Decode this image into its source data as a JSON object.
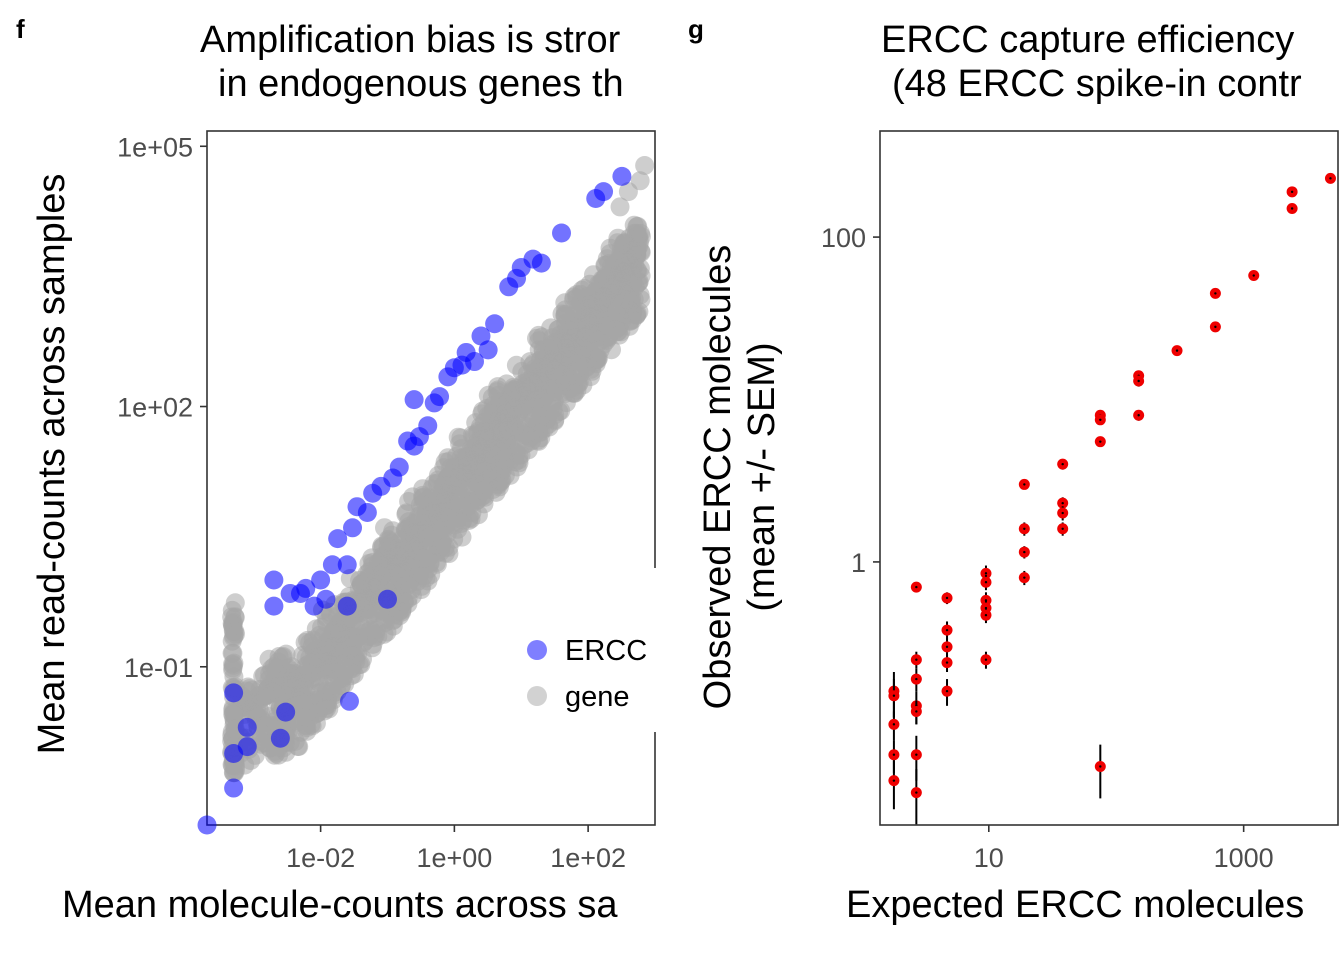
{
  "panels": {
    "f": {
      "letter": "f",
      "title_line1": "Amplification bias is stror",
      "title_line2": "in endogenous genes th",
      "xlabel": "Mean molecule-counts across sa",
      "ylabel": "Mean read-counts across samples",
      "legend": [
        {
          "label": "ERCC",
          "color": "#0000ff"
        },
        {
          "label": "gene",
          "color": "#a6a6a6"
        }
      ]
    },
    "g": {
      "letter": "g",
      "title_line1": "ERCC capture efficiency",
      "title_line2": "(48 ERCC spike-in contr",
      "xlabel": "Expected ERCC molecules",
      "ylabel_line1": "Observed ERCC molecules",
      "ylabel_line2": "(mean +/- SEM)"
    }
  },
  "chart_data": [
    {
      "type": "scatter",
      "panel": "f",
      "title": "Amplification bias is stror in endogenous genes th",
      "xlabel": "Mean molecule-counts across sa",
      "ylabel": "Mean read-counts across samples",
      "x_scale": "log10",
      "y_scale": "log10",
      "xlim": [
        0.0002,
        1000
      ],
      "ylim": [
        0.0015,
        150000
      ],
      "x_ticks": [
        "1e-02",
        "1e+00",
        "1e+02"
      ],
      "y_ticks": [
        "1e-01",
        "1e+02",
        "1e+05"
      ],
      "legend_position": "bottom-right",
      "grid": false,
      "series": [
        {
          "name": "ERCC",
          "color": "#0000ff",
          "points": [
            [
              0.0002,
              0.0015
            ],
            [
              0.0005,
              0.004
            ],
            [
              0.0005,
              0.01
            ],
            [
              0.0005,
              0.05
            ],
            [
              0.0008,
              0.012
            ],
            [
              0.0008,
              0.02
            ],
            [
              0.002,
              0.5
            ],
            [
              0.002,
              1.0
            ],
            [
              0.0025,
              0.015
            ],
            [
              0.003,
              0.03
            ],
            [
              0.0035,
              0.7
            ],
            [
              0.005,
              0.7
            ],
            [
              0.006,
              0.8
            ],
            [
              0.008,
              0.5
            ],
            [
              0.01,
              1.0
            ],
            [
              0.012,
              0.6
            ],
            [
              0.015,
              1.5
            ],
            [
              0.018,
              3.0
            ],
            [
              0.025,
              0.5
            ],
            [
              0.025,
              1.5
            ],
            [
              0.027,
              0.04
            ],
            [
              0.03,
              4.0
            ],
            [
              0.035,
              7.0
            ],
            [
              0.05,
              6.0
            ],
            [
              0.06,
              10.0
            ],
            [
              0.08,
              12.0
            ],
            [
              0.1,
              0.6
            ],
            [
              0.12,
              15.0
            ],
            [
              0.15,
              20.0
            ],
            [
              0.2,
              40.0
            ],
            [
              0.25,
              35.0
            ],
            [
              0.25,
              120.0
            ],
            [
              0.3,
              45.0
            ],
            [
              0.4,
              60.0
            ],
            [
              0.5,
              110.0
            ],
            [
              0.6,
              130.0
            ],
            [
              0.8,
              220.0
            ],
            [
              1.0,
              280.0
            ],
            [
              1.3,
              300.0
            ],
            [
              1.5,
              420.0
            ],
            [
              2.0,
              330.0
            ],
            [
              2.5,
              650.0
            ],
            [
              3.2,
              450.0
            ],
            [
              4.0,
              900.0
            ],
            [
              6.5,
              2400.0
            ],
            [
              8.5,
              3000.0
            ],
            [
              10.0,
              4000.0
            ],
            [
              15.0,
              5000.0
            ],
            [
              20.0,
              4500.0
            ],
            [
              40.0,
              10000.0
            ],
            [
              130.0,
              25000.0
            ],
            [
              170.0,
              30000.0
            ],
            [
              320.0,
              45000.0
            ]
          ]
        },
        {
          "name": "gene",
          "color": "#a6a6a6",
          "trend": [
            [
              0.0005,
              0.03
            ],
            [
              0.005,
              0.06
            ],
            [
              0.05,
              0.6
            ],
            [
              0.5,
              6
            ],
            [
              5,
              60
            ],
            [
              50,
              500
            ],
            [
              500,
              5000
            ]
          ],
          "spread_upper_factor": 4,
          "spread_lower_factor": 5,
          "upper_outliers": [
            [
              700,
              60000
            ],
            [
              600,
              40000
            ],
            [
              400,
              30000
            ],
            [
              300,
              20000
            ]
          ],
          "lower_outliers": [
            [
              30,
              500
            ],
            [
              10,
              150
            ],
            [
              5,
              50
            ],
            [
              2,
              30
            ]
          ]
        }
      ]
    },
    {
      "type": "scatter",
      "panel": "g",
      "title": "ERCC capture efficiency (48 ERCC spike-in contr",
      "xlabel": "Expected ERCC molecules",
      "ylabel": "Observed ERCC molecules (mean +/- SEM)",
      "x_scale": "log10",
      "y_scale": "log10",
      "xlim": [
        1.4,
        5500
      ],
      "ylim": [
        0.024,
        450
      ],
      "x_ticks": [
        "10",
        "1000"
      ],
      "y_ticks": [
        "1",
        "100"
      ],
      "error_bars": "SEM",
      "grid": false,
      "point_color": "#ee0000",
      "points": [
        {
          "x": 1.8,
          "y": 0.16,
          "sem": 0.05
        },
        {
          "x": 1.8,
          "y": 0.15,
          "sem": 0.04
        },
        {
          "x": 1.8,
          "y": 0.1,
          "sem": 0.02
        },
        {
          "x": 1.8,
          "y": 0.065,
          "sem": 0.015
        },
        {
          "x": 1.8,
          "y": 0.045,
          "sem": 0.015
        },
        {
          "x": 2.7,
          "y": 0.7,
          "sem": 0.05
        },
        {
          "x": 2.7,
          "y": 0.25,
          "sem": 0.03
        },
        {
          "x": 2.7,
          "y": 0.19,
          "sem": 0.03
        },
        {
          "x": 2.7,
          "y": 0.13,
          "sem": 0.03
        },
        {
          "x": 2.7,
          "y": 0.12,
          "sem": 0.02
        },
        {
          "x": 2.7,
          "y": 0.065,
          "sem": 0.02
        },
        {
          "x": 2.7,
          "y": 0.038,
          "sem": 0.015
        },
        {
          "x": 4.7,
          "y": 0.6,
          "sem": 0.05
        },
        {
          "x": 4.7,
          "y": 0.38,
          "sem": 0.05
        },
        {
          "x": 4.7,
          "y": 0.3,
          "sem": 0.04
        },
        {
          "x": 4.7,
          "y": 0.24,
          "sem": 0.03
        },
        {
          "x": 4.7,
          "y": 0.16,
          "sem": 0.03
        },
        {
          "x": 9.5,
          "y": 0.85,
          "sem": 0.1
        },
        {
          "x": 9.5,
          "y": 0.75,
          "sem": 0.08
        },
        {
          "x": 9.5,
          "y": 0.58,
          "sem": 0.07
        },
        {
          "x": 9.5,
          "y": 0.52,
          "sem": 0.06
        },
        {
          "x": 9.5,
          "y": 0.47,
          "sem": 0.05
        },
        {
          "x": 9.5,
          "y": 0.25,
          "sem": 0.03
        },
        {
          "x": 19,
          "y": 3.0,
          "sem": 0.2
        },
        {
          "x": 19,
          "y": 1.6,
          "sem": 0.15
        },
        {
          "x": 19,
          "y": 1.15,
          "sem": 0.1
        },
        {
          "x": 19,
          "y": 0.8,
          "sem": 0.08
        },
        {
          "x": 38,
          "y": 4.0,
          "sem": 0.3
        },
        {
          "x": 38,
          "y": 2.3,
          "sem": 0.2
        },
        {
          "x": 38,
          "y": 2.0,
          "sem": 0.2
        },
        {
          "x": 38,
          "y": 1.6,
          "sem": 0.15
        },
        {
          "x": 75,
          "y": 8.0,
          "sem": 0.5
        },
        {
          "x": 75,
          "y": 7.5,
          "sem": 0.5
        },
        {
          "x": 75,
          "y": 5.5,
          "sem": 0.4
        },
        {
          "x": 75,
          "y": 0.055,
          "sem": 0.02
        },
        {
          "x": 150,
          "y": 14.0,
          "sem": 1.0
        },
        {
          "x": 150,
          "y": 13.0,
          "sem": 1.0
        },
        {
          "x": 150,
          "y": 8.0,
          "sem": 0.6
        },
        {
          "x": 300,
          "y": 20.0,
          "sem": 1.2
        },
        {
          "x": 600,
          "y": 45.0,
          "sem": 2.0
        },
        {
          "x": 600,
          "y": 28.0,
          "sem": 1.5
        },
        {
          "x": 1200,
          "y": 58.0,
          "sem": 3.0
        },
        {
          "x": 2400,
          "y": 190.0,
          "sem": 8.0
        },
        {
          "x": 2400,
          "y": 150.0,
          "sem": 6.0
        },
        {
          "x": 4800,
          "y": 230.0,
          "sem": 10.0
        }
      ]
    }
  ]
}
